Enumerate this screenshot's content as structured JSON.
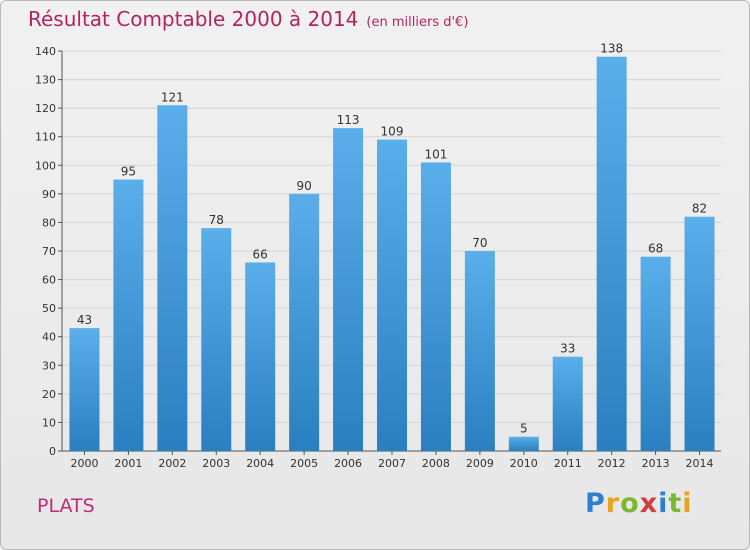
{
  "header": {
    "title": "Résultat Comptable 2000 à 2014",
    "unit": "(en milliers d'€)"
  },
  "footer": {
    "commune": "PLATS",
    "brand_letters": [
      "P",
      "r",
      "o",
      "x",
      "i",
      "t",
      "i"
    ]
  },
  "colors": {
    "bar_top": "#5aaeea",
    "bar_bottom": "#2a7fc0",
    "title": "#b3245f",
    "grid": "#d3d3d3"
  },
  "chart_data": {
    "type": "bar",
    "title": "Résultat Comptable 2000 à 2014",
    "ylabel": "",
    "xlabel": "",
    "ylim": [
      0,
      140
    ],
    "yticks": [
      0,
      10,
      20,
      30,
      40,
      50,
      60,
      70,
      80,
      90,
      100,
      110,
      120,
      130,
      140
    ],
    "categories": [
      "2000",
      "2001",
      "2002",
      "2003",
      "2004",
      "2005",
      "2006",
      "2007",
      "2008",
      "2009",
      "2010",
      "2011",
      "2012",
      "2013",
      "2014"
    ],
    "values": [
      43,
      95,
      121,
      78,
      66,
      90,
      113,
      109,
      101,
      70,
      5,
      33,
      138,
      68,
      82
    ],
    "grid": true
  }
}
